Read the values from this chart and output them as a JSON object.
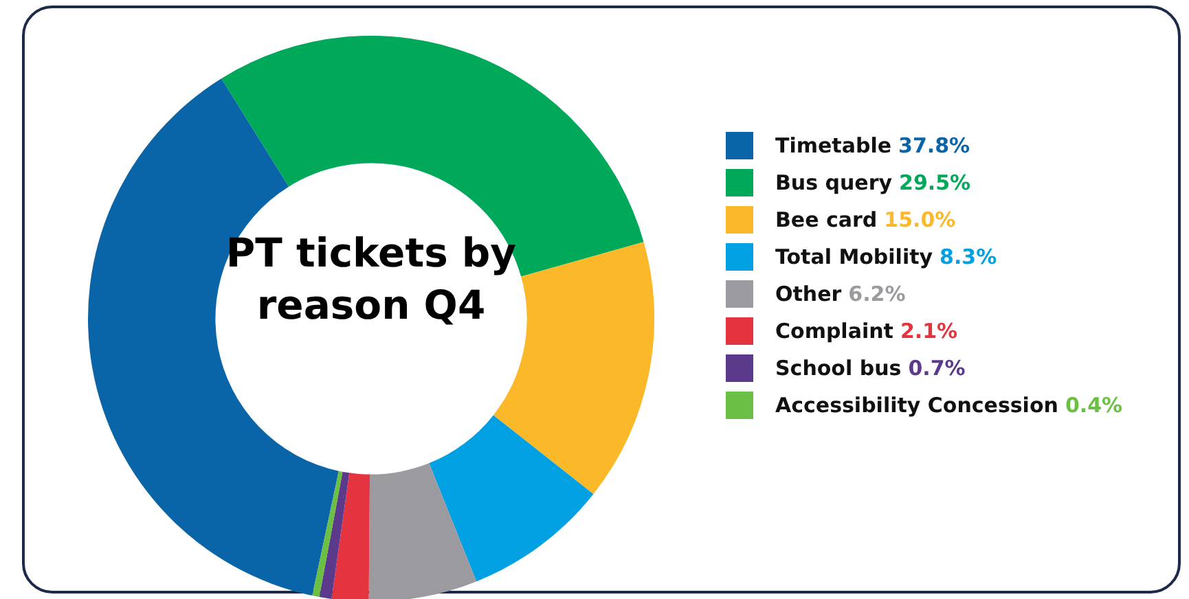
{
  "chart_data": {
    "type": "donut",
    "title": "PT tickets by reason Q4",
    "categories": [
      "Timetable",
      "Bus query",
      "Bee card",
      "Total Mobility",
      "Other",
      "Complaint",
      "School bus",
      "Accessibility Concession"
    ],
    "values": [
      37.8,
      29.5,
      15.0,
      8.3,
      6.2,
      2.1,
      0.7,
      0.4
    ],
    "value_labels": [
      "37.8%",
      "29.5%",
      "15.0%",
      "8.3%",
      "6.2%",
      "2.1%",
      "0.7%",
      "0.4%"
    ],
    "colors": [
      "#0a64a8",
      "#00a85a",
      "#fbb829",
      "#00a0e3",
      "#9b9b9f",
      "#e3343f",
      "#5b3a8c",
      "#6cbf45"
    ],
    "legend": "right"
  }
}
